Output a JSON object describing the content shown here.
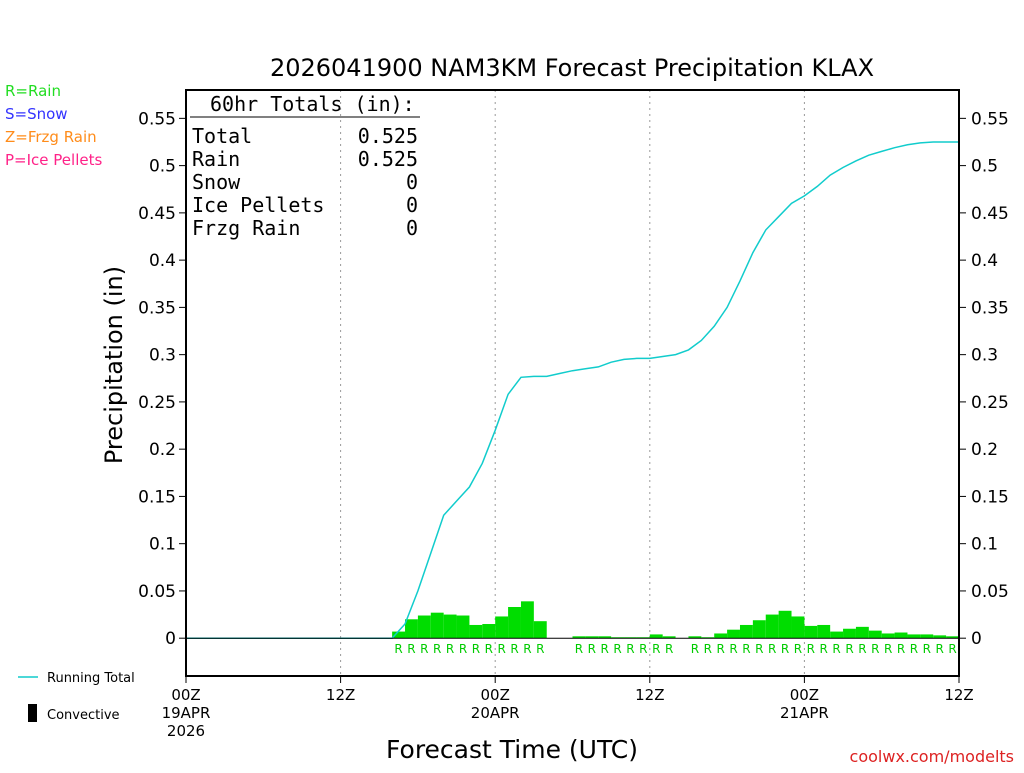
{
  "chart_data": {
    "type": "bar",
    "title": "2026041900 NAM3KM Forecast Precipitation KLAX",
    "xlabel": "Forecast Time (UTC)",
    "ylabel": "Precipitation (in)",
    "ylim": [
      -0.04,
      0.58
    ],
    "xlim_hours": [
      0,
      60
    ],
    "y_ticks": [
      "0",
      "0.05",
      "0.1",
      "0.15",
      "0.2",
      "0.25",
      "0.3",
      "0.35",
      "0.4",
      "0.45",
      "0.5",
      "0.55"
    ],
    "y_tick_values": [
      0,
      0.05,
      0.1,
      0.15,
      0.2,
      0.25,
      0.3,
      0.35,
      0.4,
      0.45,
      0.5,
      0.55
    ],
    "x_ticks": [
      {
        "hour": 0,
        "lines": [
          "00Z",
          "19APR",
          "2026"
        ]
      },
      {
        "hour": 12,
        "lines": [
          "12Z"
        ]
      },
      {
        "hour": 24,
        "lines": [
          "00Z",
          "20APR"
        ]
      },
      {
        "hour": 36,
        "lines": [
          "12Z"
        ]
      },
      {
        "hour": 48,
        "lines": [
          "00Z",
          "21APR"
        ]
      },
      {
        "hour": 60,
        "lines": [
          "12Z"
        ]
      }
    ],
    "type_legend": [
      {
        "label": "R=Rain",
        "color": "#22dd22"
      },
      {
        "label": "S=Snow",
        "color": "#3333ff"
      },
      {
        "label": "Z=Frzg Rain",
        "color": "#ff8c1a"
      },
      {
        "label": "P=Ice Pellets",
        "color": "#ff2288"
      }
    ],
    "series_legend": {
      "running_total_label": "Running Total",
      "running_total_color": "#11cccc",
      "convective_label": "Convective",
      "convective_color": "#000000"
    },
    "bar_color": "#00dd00",
    "precip_type_color": "#00cc00",
    "totals": {
      "header": "60hr Totals (in):",
      "rows": [
        {
          "label": "Total",
          "value": "0.525"
        },
        {
          "label": "Rain",
          "value": "0.525"
        },
        {
          "label": "Snow",
          "value": "0"
        },
        {
          "label": "Ice Pellets",
          "value": "0"
        },
        {
          "label": "Frzg Rain",
          "value": "0"
        }
      ]
    },
    "hourly_bars": [
      {
        "hour": 17,
        "value": 0.007,
        "type": "R"
      },
      {
        "hour": 18,
        "value": 0.02,
        "type": "R"
      },
      {
        "hour": 19,
        "value": 0.024,
        "type": "R"
      },
      {
        "hour": 20,
        "value": 0.027,
        "type": "R"
      },
      {
        "hour": 21,
        "value": 0.025,
        "type": "R"
      },
      {
        "hour": 22,
        "value": 0.024,
        "type": "R"
      },
      {
        "hour": 23,
        "value": 0.014,
        "type": "R"
      },
      {
        "hour": 24,
        "value": 0.015,
        "type": "R"
      },
      {
        "hour": 25,
        "value": 0.023,
        "type": "R"
      },
      {
        "hour": 26,
        "value": 0.033,
        "type": "R"
      },
      {
        "hour": 27,
        "value": 0.039,
        "type": "R"
      },
      {
        "hour": 28,
        "value": 0.018,
        "type": "R"
      },
      {
        "hour": 31,
        "value": 0.002,
        "type": "R"
      },
      {
        "hour": 32,
        "value": 0.002,
        "type": "R"
      },
      {
        "hour": 33,
        "value": 0.002,
        "type": "R"
      },
      {
        "hour": 34,
        "value": 0.001,
        "type": "R"
      },
      {
        "hour": 35,
        "value": 0.001,
        "type": "R"
      },
      {
        "hour": 36,
        "value": 0.001,
        "type": "R"
      },
      {
        "hour": 37,
        "value": 0.004,
        "type": "R"
      },
      {
        "hour": 38,
        "value": 0.002,
        "type": "R"
      },
      {
        "hour": 40,
        "value": 0.002,
        "type": "R"
      },
      {
        "hour": 41,
        "value": 0.001,
        "type": "R"
      },
      {
        "hour": 42,
        "value": 0.005,
        "type": "R"
      },
      {
        "hour": 43,
        "value": 0.009,
        "type": "R"
      },
      {
        "hour": 44,
        "value": 0.014,
        "type": "R"
      },
      {
        "hour": 45,
        "value": 0.019,
        "type": "R"
      },
      {
        "hour": 46,
        "value": 0.025,
        "type": "R"
      },
      {
        "hour": 47,
        "value": 0.029,
        "type": "R"
      },
      {
        "hour": 48,
        "value": 0.023,
        "type": "R"
      },
      {
        "hour": 49,
        "value": 0.013,
        "type": "R"
      },
      {
        "hour": 50,
        "value": 0.014,
        "type": "R"
      },
      {
        "hour": 51,
        "value": 0.007,
        "type": "R"
      },
      {
        "hour": 52,
        "value": 0.01,
        "type": "R"
      },
      {
        "hour": 53,
        "value": 0.012,
        "type": "R"
      },
      {
        "hour": 54,
        "value": 0.008,
        "type": "R"
      },
      {
        "hour": 55,
        "value": 0.005,
        "type": "R"
      },
      {
        "hour": 56,
        "value": 0.006,
        "type": "R"
      },
      {
        "hour": 57,
        "value": 0.004,
        "type": "R"
      },
      {
        "hour": 58,
        "value": 0.004,
        "type": "R"
      },
      {
        "hour": 59,
        "value": 0.003,
        "type": "R"
      },
      {
        "hour": 60,
        "value": 0.002,
        "type": "R"
      }
    ],
    "running_total": {
      "hours": [
        0,
        16,
        17,
        18,
        19,
        20,
        21,
        22,
        23,
        24,
        25,
        26,
        27,
        28,
        29,
        30,
        31,
        32,
        33,
        34,
        35,
        36,
        37,
        38,
        39,
        40,
        41,
        42,
        43,
        44,
        45,
        46,
        47,
        48,
        49,
        50,
        51,
        52,
        53,
        54,
        55,
        56,
        57,
        58,
        59,
        60
      ],
      "values": [
        0,
        0,
        0.015,
        0.05,
        0.09,
        0.13,
        0.145,
        0.16,
        0.185,
        0.22,
        0.258,
        0.276,
        0.277,
        0.277,
        0.28,
        0.283,
        0.285,
        0.287,
        0.292,
        0.295,
        0.296,
        0.296,
        0.298,
        0.3,
        0.305,
        0.315,
        0.33,
        0.35,
        0.378,
        0.408,
        0.432,
        0.446,
        0.46,
        0.468,
        0.478,
        0.49,
        0.498,
        0.505,
        0.511,
        0.515,
        0.519,
        0.522,
        0.524,
        0.525,
        0.525,
        0.525
      ]
    }
  },
  "footer": {
    "credit": "coolwx.com/modelts"
  }
}
